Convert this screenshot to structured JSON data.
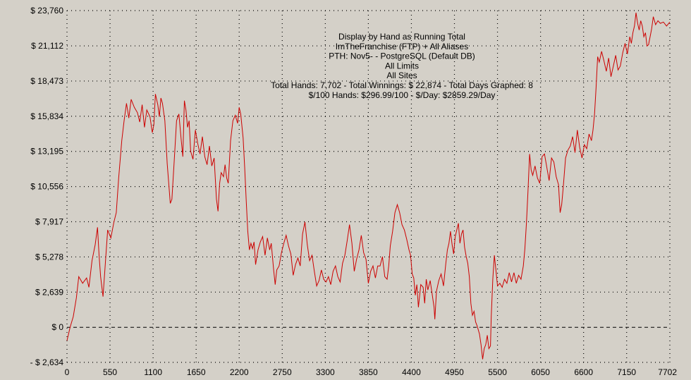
{
  "colors": {
    "background": "#d4d0c8",
    "line": "#cc0000",
    "grid": "#000000",
    "text": "#000000"
  },
  "chart_data": {
    "type": "line",
    "title_lines": [
      "Display by Hand as Running Total",
      "ImTheFranchise (FTP) + All Aliases",
      "PTH: Nov5- - PostgreSQL (Default DB)",
      "All Limits",
      "All Sites",
      "Total Hands: 7,702 - Total Winnings: $ 22,874 - Total Days Graphed: 8",
      "$/100 Hands: $296.99/100 - $/Day: $2859.29/Day"
    ],
    "xlabel": "",
    "ylabel": "",
    "xlim": [
      0,
      7702
    ],
    "ylim": [
      -2634,
      23760
    ],
    "x_ticks": [
      0,
      550,
      1100,
      1650,
      2200,
      2750,
      3300,
      3850,
      4400,
      4950,
      5500,
      6050,
      6600,
      7150,
      7702
    ],
    "x_tick_labels": [
      "0",
      "550",
      "1100",
      "1650",
      "2200",
      "2750",
      "3300",
      "3850",
      "4400",
      "4950",
      "5500",
      "6050",
      "6600",
      "7150",
      "7702"
    ],
    "y_ticks": [
      -2634,
      0,
      2639,
      5278,
      7917,
      10556,
      13195,
      15834,
      18473,
      21112,
      23760
    ],
    "y_tick_labels": [
      "- $ 2,634",
      "$ 0",
      "$ 2,639",
      "$ 5,278",
      "$ 7,917",
      "$ 10,556",
      "$ 13,195",
      "$ 15,834",
      "$ 18,473",
      "$ 21,112",
      "$ 23,760"
    ],
    "grid": true,
    "zero_line": "dashed",
    "series": [
      {
        "values": [
          [
            0,
            -1000
          ],
          [
            40,
            0
          ],
          [
            80,
            800
          ],
          [
            120,
            2200
          ],
          [
            150,
            3800
          ],
          [
            200,
            3300
          ],
          [
            250,
            3700
          ],
          [
            280,
            3000
          ],
          [
            320,
            5000
          ],
          [
            360,
            6200
          ],
          [
            390,
            7500
          ],
          [
            410,
            5400
          ],
          [
            430,
            3800
          ],
          [
            460,
            2300
          ],
          [
            490,
            4800
          ],
          [
            520,
            7300
          ],
          [
            560,
            6700
          ],
          [
            600,
            7900
          ],
          [
            630,
            8600
          ],
          [
            660,
            11200
          ],
          [
            700,
            14000
          ],
          [
            730,
            15500
          ],
          [
            760,
            16800
          ],
          [
            790,
            15700
          ],
          [
            820,
            17100
          ],
          [
            860,
            16500
          ],
          [
            900,
            16100
          ],
          [
            930,
            15400
          ],
          [
            960,
            16700
          ],
          [
            990,
            15000
          ],
          [
            1020,
            16300
          ],
          [
            1060,
            15800
          ],
          [
            1090,
            14600
          ],
          [
            1110,
            15200
          ],
          [
            1130,
            17500
          ],
          [
            1160,
            16700
          ],
          [
            1180,
            15800
          ],
          [
            1200,
            17200
          ],
          [
            1220,
            16800
          ],
          [
            1250,
            15500
          ],
          [
            1280,
            12300
          ],
          [
            1300,
            10800
          ],
          [
            1320,
            9300
          ],
          [
            1340,
            9600
          ],
          [
            1370,
            12500
          ],
          [
            1400,
            15500
          ],
          [
            1430,
            16000
          ],
          [
            1460,
            14000
          ],
          [
            1480,
            12800
          ],
          [
            1500,
            17000
          ],
          [
            1520,
            16300
          ],
          [
            1540,
            15000
          ],
          [
            1560,
            15500
          ],
          [
            1580,
            13200
          ],
          [
            1610,
            12600
          ],
          [
            1640,
            14800
          ],
          [
            1670,
            13800
          ],
          [
            1700,
            13000
          ],
          [
            1730,
            14300
          ],
          [
            1760,
            12800
          ],
          [
            1790,
            12200
          ],
          [
            1820,
            13600
          ],
          [
            1850,
            12100
          ],
          [
            1880,
            12700
          ],
          [
            1910,
            9600
          ],
          [
            1930,
            8700
          ],
          [
            1950,
            10800
          ],
          [
            1970,
            11600
          ],
          [
            2000,
            11300
          ],
          [
            2020,
            12200
          ],
          [
            2040,
            11200
          ],
          [
            2060,
            10800
          ],
          [
            2090,
            14000
          ],
          [
            2120,
            15500
          ],
          [
            2150,
            15900
          ],
          [
            2180,
            15300
          ],
          [
            2200,
            16500
          ],
          [
            2220,
            16000
          ],
          [
            2250,
            14200
          ],
          [
            2270,
            12000
          ],
          [
            2290,
            9500
          ],
          [
            2310,
            7200
          ],
          [
            2330,
            5800
          ],
          [
            2350,
            6300
          ],
          [
            2370,
            5900
          ],
          [
            2390,
            6400
          ],
          [
            2410,
            4700
          ],
          [
            2440,
            5800
          ],
          [
            2470,
            6400
          ],
          [
            2500,
            6800
          ],
          [
            2530,
            5400
          ],
          [
            2560,
            6700
          ],
          [
            2590,
            5800
          ],
          [
            2610,
            6300
          ],
          [
            2640,
            4300
          ],
          [
            2660,
            3200
          ],
          [
            2680,
            4300
          ],
          [
            2710,
            4600
          ],
          [
            2740,
            5600
          ],
          [
            2770,
            6300
          ],
          [
            2800,
            6900
          ],
          [
            2830,
            6100
          ],
          [
            2860,
            5500
          ],
          [
            2890,
            3900
          ],
          [
            2920,
            4700
          ],
          [
            2950,
            5200
          ],
          [
            2980,
            4600
          ],
          [
            3010,
            7000
          ],
          [
            3040,
            7900
          ],
          [
            3070,
            6200
          ],
          [
            3100,
            5000
          ],
          [
            3130,
            5400
          ],
          [
            3160,
            4200
          ],
          [
            3190,
            3100
          ],
          [
            3220,
            3500
          ],
          [
            3250,
            4300
          ],
          [
            3280,
            3600
          ],
          [
            3310,
            3400
          ],
          [
            3340,
            3800
          ],
          [
            3370,
            3200
          ],
          [
            3400,
            4200
          ],
          [
            3430,
            4600
          ],
          [
            3460,
            3800
          ],
          [
            3490,
            3400
          ],
          [
            3520,
            4800
          ],
          [
            3550,
            5400
          ],
          [
            3580,
            6500
          ],
          [
            3610,
            7700
          ],
          [
            3640,
            6300
          ],
          [
            3670,
            4200
          ],
          [
            3700,
            5100
          ],
          [
            3730,
            5800
          ],
          [
            3760,
            6900
          ],
          [
            3790,
            5600
          ],
          [
            3820,
            5100
          ],
          [
            3850,
            3300
          ],
          [
            3880,
            4200
          ],
          [
            3910,
            4600
          ],
          [
            3940,
            3700
          ],
          [
            3970,
            4600
          ],
          [
            4000,
            4600
          ],
          [
            4030,
            5300
          ],
          [
            4060,
            3800
          ],
          [
            4090,
            3600
          ],
          [
            4110,
            4600
          ],
          [
            4130,
            6100
          ],
          [
            4160,
            7200
          ],
          [
            4190,
            8600
          ],
          [
            4220,
            9200
          ],
          [
            4250,
            8600
          ],
          [
            4280,
            7700
          ],
          [
            4310,
            7300
          ],
          [
            4340,
            6600
          ],
          [
            4370,
            5800
          ],
          [
            4390,
            5400
          ],
          [
            4410,
            4000
          ],
          [
            4430,
            3700
          ],
          [
            4450,
            2400
          ],
          [
            4470,
            3200
          ],
          [
            4490,
            1500
          ],
          [
            4520,
            3200
          ],
          [
            4550,
            3000
          ],
          [
            4570,
            1800
          ],
          [
            4590,
            3600
          ],
          [
            4610,
            2800
          ],
          [
            4640,
            3500
          ],
          [
            4670,
            2300
          ],
          [
            4690,
            1500
          ],
          [
            4700,
            600
          ],
          [
            4720,
            2700
          ],
          [
            4750,
            3500
          ],
          [
            4780,
            4000
          ],
          [
            4810,
            3100
          ],
          [
            4840,
            4800
          ],
          [
            4860,
            5800
          ],
          [
            4880,
            6300
          ],
          [
            4900,
            7200
          ],
          [
            4920,
            6200
          ],
          [
            4940,
            5500
          ],
          [
            4960,
            6800
          ],
          [
            4980,
            7300
          ],
          [
            5000,
            7800
          ],
          [
            5020,
            6300
          ],
          [
            5040,
            7000
          ],
          [
            5060,
            7300
          ],
          [
            5080,
            6000
          ],
          [
            5100,
            5300
          ],
          [
            5120,
            4800
          ],
          [
            5140,
            3800
          ],
          [
            5160,
            1800
          ],
          [
            5180,
            900
          ],
          [
            5200,
            1200
          ],
          [
            5220,
            400
          ],
          [
            5240,
            100
          ],
          [
            5270,
            -500
          ],
          [
            5290,
            -1300
          ],
          [
            5310,
            -2400
          ],
          [
            5330,
            -1600
          ],
          [
            5350,
            -1300
          ],
          [
            5370,
            -600
          ],
          [
            5390,
            -1600
          ],
          [
            5410,
            -1400
          ],
          [
            5420,
            800
          ],
          [
            5440,
            3600
          ],
          [
            5460,
            5400
          ],
          [
            5480,
            4300
          ],
          [
            5500,
            3100
          ],
          [
            5530,
            3300
          ],
          [
            5560,
            3000
          ],
          [
            5590,
            3600
          ],
          [
            5620,
            3300
          ],
          [
            5650,
            4100
          ],
          [
            5680,
            3400
          ],
          [
            5710,
            4100
          ],
          [
            5740,
            3300
          ],
          [
            5770,
            3900
          ],
          [
            5800,
            3600
          ],
          [
            5830,
            4600
          ],
          [
            5850,
            5900
          ],
          [
            5870,
            7800
          ],
          [
            5890,
            10200
          ],
          [
            5910,
            13000
          ],
          [
            5930,
            11800
          ],
          [
            5950,
            11400
          ],
          [
            5980,
            12100
          ],
          [
            6010,
            11200
          ],
          [
            6040,
            10800
          ],
          [
            6070,
            12800
          ],
          [
            6100,
            13000
          ],
          [
            6130,
            12000
          ],
          [
            6160,
            11000
          ],
          [
            6190,
            12700
          ],
          [
            6220,
            12400
          ],
          [
            6250,
            11300
          ],
          [
            6280,
            10700
          ],
          [
            6300,
            8600
          ],
          [
            6320,
            9200
          ],
          [
            6340,
            10500
          ],
          [
            6370,
            12700
          ],
          [
            6400,
            13300
          ],
          [
            6430,
            13600
          ],
          [
            6460,
            14300
          ],
          [
            6490,
            13100
          ],
          [
            6520,
            14800
          ],
          [
            6550,
            13500
          ],
          [
            6580,
            12700
          ],
          [
            6610,
            13700
          ],
          [
            6640,
            13400
          ],
          [
            6670,
            14500
          ],
          [
            6700,
            14000
          ],
          [
            6720,
            14800
          ],
          [
            6740,
            16000
          ],
          [
            6760,
            18000
          ],
          [
            6780,
            20300
          ],
          [
            6800,
            19900
          ],
          [
            6830,
            20700
          ],
          [
            6860,
            20000
          ],
          [
            6890,
            19200
          ],
          [
            6920,
            20200
          ],
          [
            6950,
            18800
          ],
          [
            6980,
            19600
          ],
          [
            7010,
            20400
          ],
          [
            7040,
            19300
          ],
          [
            7070,
            19600
          ],
          [
            7100,
            20600
          ],
          [
            7130,
            21300
          ],
          [
            7160,
            20500
          ],
          [
            7190,
            21800
          ],
          [
            7210,
            21300
          ],
          [
            7230,
            22100
          ],
          [
            7250,
            22600
          ],
          [
            7270,
            23600
          ],
          [
            7290,
            22800
          ],
          [
            7310,
            22300
          ],
          [
            7330,
            23000
          ],
          [
            7350,
            22600
          ],
          [
            7370,
            21800
          ],
          [
            7390,
            22100
          ],
          [
            7410,
            21100
          ],
          [
            7430,
            21200
          ],
          [
            7450,
            21800
          ],
          [
            7470,
            22400
          ],
          [
            7490,
            23300
          ],
          [
            7520,
            22700
          ],
          [
            7550,
            23000
          ],
          [
            7580,
            22800
          ],
          [
            7620,
            22900
          ],
          [
            7660,
            22600
          ],
          [
            7702,
            22900
          ]
        ]
      }
    ]
  }
}
